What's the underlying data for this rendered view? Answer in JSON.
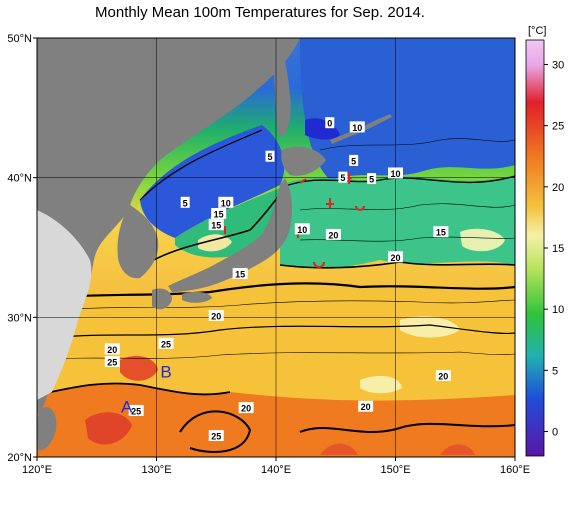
{
  "title": "Monthly Mean 100m Temperatures for Sep. 2014.",
  "chart_data": {
    "type": "heatmap",
    "title": "Monthly Mean 100m Temperatures for Sep. 2014.",
    "xlim": [
      120,
      160
    ],
    "ylim": [
      20,
      50
    ],
    "x_ticks": [
      "120°E",
      "130°E",
      "140°E",
      "150°E",
      "160°E"
    ],
    "y_ticks": [
      "50°N",
      "40°N",
      "30°N",
      "20°N"
    ],
    "colorbar": {
      "unit": "[°C]",
      "range": [
        -2,
        32
      ],
      "ticks": [
        "30",
        "25",
        "20",
        "15",
        "10",
        "5",
        "0"
      ],
      "tick_values": [
        30,
        25,
        20,
        15,
        10,
        5,
        0
      ]
    },
    "contour_labels": [
      {
        "text": "0",
        "lon": 144.5,
        "lat": 43.9
      },
      {
        "text": "10",
        "lon": 146.8,
        "lat": 43.6
      },
      {
        "text": "5",
        "lon": 139.5,
        "lat": 41.5
      },
      {
        "text": "5",
        "lon": 146.5,
        "lat": 41.2
      },
      {
        "text": "10",
        "lon": 150.0,
        "lat": 40.3
      },
      {
        "text": "5",
        "lon": 148.0,
        "lat": 39.9
      },
      {
        "text": "5",
        "lon": 145.6,
        "lat": 40.0
      },
      {
        "text": "5",
        "lon": 132.4,
        "lat": 38.2
      },
      {
        "text": "10",
        "lon": 135.8,
        "lat": 38.2
      },
      {
        "text": "15",
        "lon": 135.2,
        "lat": 37.4
      },
      {
        "text": "15",
        "lon": 135.0,
        "lat": 36.6
      },
      {
        "text": "10",
        "lon": 142.2,
        "lat": 36.3
      },
      {
        "text": "20",
        "lon": 144.8,
        "lat": 35.9
      },
      {
        "text": "15",
        "lon": 153.8,
        "lat": 36.1
      },
      {
        "text": "20",
        "lon": 150.0,
        "lat": 34.3
      },
      {
        "text": "15",
        "lon": 137.0,
        "lat": 33.1
      },
      {
        "text": "20",
        "lon": 135.0,
        "lat": 30.1
      },
      {
        "text": "25",
        "lon": 130.8,
        "lat": 28.1
      },
      {
        "text": "20",
        "lon": 126.3,
        "lat": 27.7
      },
      {
        "text": "25",
        "lon": 126.3,
        "lat": 26.8
      },
      {
        "text": "20",
        "lon": 154.0,
        "lat": 25.8
      },
      {
        "text": "25",
        "lon": 128.3,
        "lat": 23.3
      },
      {
        "text": "20",
        "lon": 137.5,
        "lat": 23.5
      },
      {
        "text": "20",
        "lon": 147.5,
        "lat": 23.6
      },
      {
        "text": "25",
        "lon": 135.0,
        "lat": 21.5
      }
    ],
    "markers": [
      {
        "text": "A",
        "lon": 127.5,
        "lat": 23.2
      },
      {
        "text": "B",
        "lon": 130.8,
        "lat": 25.7
      }
    ]
  },
  "colors": {
    "land": "#808080",
    "land_dark": "#5a5a5a",
    "graticule": "#000000",
    "warm_front": "#e2231a"
  }
}
